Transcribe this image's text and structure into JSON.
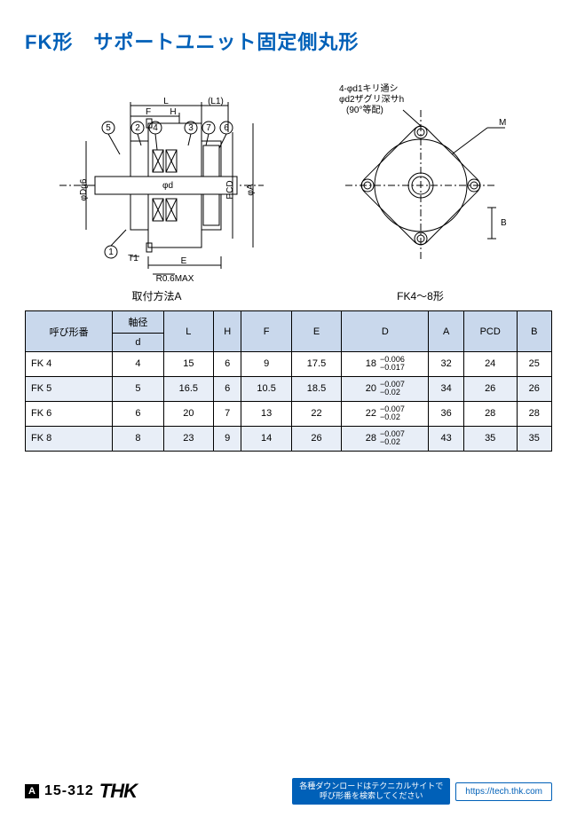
{
  "title": "FK形　サポートユニット固定側丸形",
  "diagram_left": {
    "caption": "取付方法A",
    "labels": {
      "L": "L",
      "L1": "(L1)",
      "F": "F",
      "H": "H",
      "PCD": "PCD",
      "phiA": "φA",
      "phiDg6": "φDg6",
      "phid": "φd",
      "T1": "T1",
      "E": "E",
      "R": "R0.6MAX",
      "c1": "1",
      "c2": "2",
      "c3": "3",
      "c4": "4",
      "c5": "5",
      "c6": "6",
      "c7": "7"
    }
  },
  "diagram_right": {
    "caption": "FK4～8形",
    "labels": {
      "note1": "4-φd1キリ通シ",
      "note2": "φd2ザグリ深サh",
      "note3": "(90°等配)",
      "M": "M",
      "B": "B"
    }
  },
  "table": {
    "headers": {
      "name": "呼び形番",
      "d_group": "軸径",
      "d": "d",
      "L": "L",
      "H": "H",
      "F": "F",
      "E": "E",
      "D": "D",
      "A": "A",
      "PCD": "PCD",
      "B": "B"
    },
    "rows": [
      {
        "name": "FK 4",
        "d": "4",
        "L": "15",
        "H": "6",
        "F": "9",
        "E": "17.5",
        "D_nom": "18",
        "D_tol_u": "−0.006",
        "D_tol_l": "−0.017",
        "A": "32",
        "PCD": "24",
        "B": "25"
      },
      {
        "name": "FK 5",
        "d": "5",
        "L": "16.5",
        "H": "6",
        "F": "10.5",
        "E": "18.5",
        "D_nom": "20",
        "D_tol_u": "−0.007",
        "D_tol_l": "−0.02",
        "A": "34",
        "PCD": "26",
        "B": "26"
      },
      {
        "name": "FK 6",
        "d": "6",
        "L": "20",
        "H": "7",
        "F": "13",
        "E": "22",
        "D_nom": "22",
        "D_tol_u": "−0.007",
        "D_tol_l": "−0.02",
        "A": "36",
        "PCD": "28",
        "B": "28"
      },
      {
        "name": "FK 8",
        "d": "8",
        "L": "23",
        "H": "9",
        "F": "14",
        "E": "26",
        "D_nom": "28",
        "D_tol_u": "−0.007",
        "D_tol_l": "−0.02",
        "A": "43",
        "PCD": "35",
        "B": "35"
      }
    ]
  },
  "footer": {
    "page_prefix": "A",
    "page_num": "15-312",
    "brand": "THK",
    "note_line1": "各種ダウンロードはテクニカルサイトで",
    "note_line2": "呼び形番を検索してください",
    "url": "https://tech.thk.com"
  },
  "colors": {
    "brand_blue": "#0060b8",
    "header_bg": "#c9d8ec",
    "alt_bg": "#e8eef7",
    "stroke": "#000000"
  }
}
